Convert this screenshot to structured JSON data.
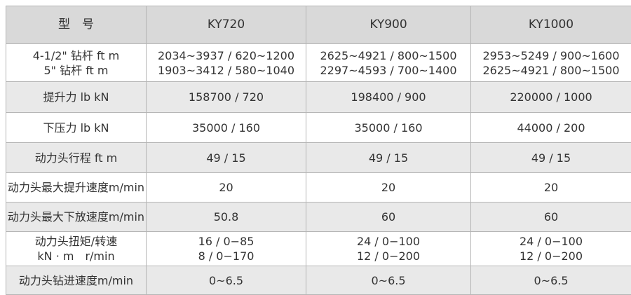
{
  "table": {
    "header": [
      "型　号",
      "KY720",
      "KY900",
      "KY1000"
    ],
    "rows": [
      [
        [
          "4-1/2\" 钻杆 ft m",
          "5\" 钻杆 ft m"
        ],
        [
          "2034~3937 / 620~1200",
          "1903~3412 / 580~1040"
        ],
        [
          "2625~4921 / 800~1500",
          "2297~4593 / 700~1400"
        ],
        [
          "2953~5249 / 900~1600",
          "2625~4921 / 800~1500"
        ]
      ],
      [
        [
          "提升力 lb kN"
        ],
        [
          "158700 / 720"
        ],
        [
          "198400 / 900"
        ],
        [
          "220000 / 1000"
        ]
      ],
      [
        [
          "下压力 lb kN"
        ],
        [
          "35000 / 160"
        ],
        [
          "35000 / 160"
        ],
        [
          "44000 / 200"
        ]
      ],
      [
        [
          "动力头行程 ft m"
        ],
        [
          "49 / 15"
        ],
        [
          "49 / 15"
        ],
        [
          "49 / 15"
        ]
      ],
      [
        [
          "动力头最大提升速度m/min"
        ],
        [
          "20"
        ],
        [
          "20"
        ],
        [
          "20"
        ]
      ],
      [
        [
          "动力头最大下放速度m/min"
        ],
        [
          "50.8"
        ],
        [
          "60"
        ],
        [
          "60"
        ]
      ],
      [
        [
          "动力头扭矩/转速",
          "kN · m　r/min"
        ],
        [
          "16 / 0−85",
          "8 / 0−170"
        ],
        [
          "24 / 0−100",
          "12 / 0−200"
        ],
        [
          "24 / 0−100",
          "12 / 0−200"
        ]
      ],
      [
        [
          "动力头钻进速度m/min"
        ],
        [
          "0~6.5"
        ],
        [
          "0~6.5"
        ],
        [
          "0~6.5"
        ]
      ]
    ]
  }
}
